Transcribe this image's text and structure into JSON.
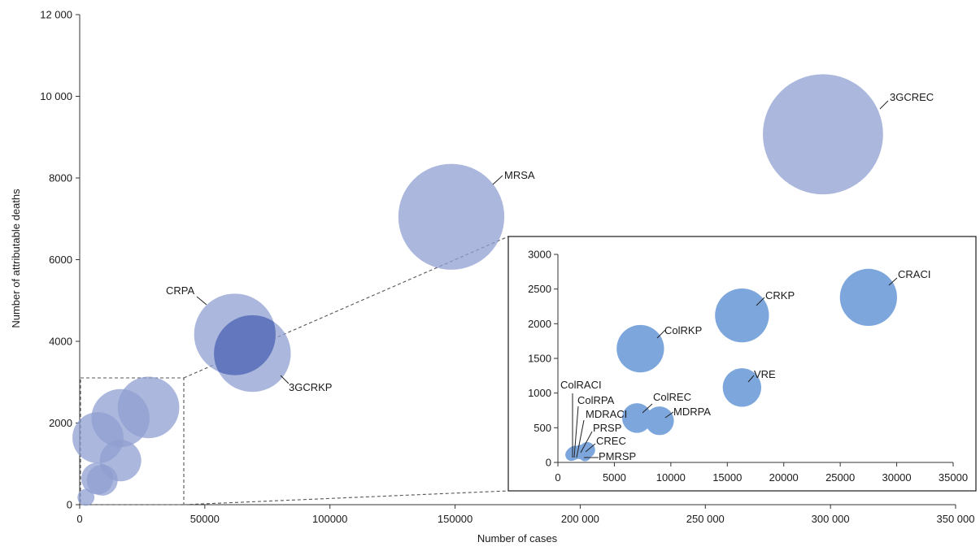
{
  "chart_data": [
    {
      "type": "scatter",
      "subtype": "bubble",
      "xlabel": "Number of cases",
      "ylabel": "Number of attributable deaths",
      "xlim": [
        0,
        350000
      ],
      "ylim": [
        0,
        12000
      ],
      "x_ticks": [
        0,
        50000,
        100000,
        150000,
        200000,
        250000,
        300000,
        350000
      ],
      "x_tick_labels": [
        "0",
        "50000",
        "100000",
        "150000",
        "200 000",
        "250 000",
        "300 000",
        "350 000"
      ],
      "y_ticks": [
        0,
        2000,
        4000,
        6000,
        8000,
        10000,
        12000
      ],
      "y_tick_labels": [
        "0",
        "2000",
        "4000",
        "6000",
        "8000",
        "10 000",
        "12 000"
      ],
      "grid": false,
      "bubble_color": "#8f9fd0",
      "overlap_color": "#6277bd",
      "points": [
        {
          "label": "3GCREC",
          "x": 297000,
          "y": 9070
        },
        {
          "label": "MRSA",
          "x": 148500,
          "y": 7050
        },
        {
          "label": "CRPA",
          "x": 62000,
          "y": 4170
        },
        {
          "label": "3GCRKP",
          "x": 69000,
          "y": 3700
        },
        {
          "label": "",
          "x": 27500,
          "y": 2380
        },
        {
          "label": "",
          "x": 16300,
          "y": 2120
        },
        {
          "label": "",
          "x": 7300,
          "y": 1640
        },
        {
          "label": "",
          "x": 16300,
          "y": 1080
        },
        {
          "label": "",
          "x": 7000,
          "y": 640
        },
        {
          "label": "",
          "x": 9000,
          "y": 600
        },
        {
          "label": "",
          "x": 2500,
          "y": 180
        }
      ]
    },
    {
      "type": "scatter",
      "subtype": "bubble",
      "inset": true,
      "xlim": [
        0,
        35000
      ],
      "ylim": [
        0,
        3000
      ],
      "x_ticks": [
        0,
        5000,
        10000,
        15000,
        20000,
        25000,
        30000,
        35000
      ],
      "x_tick_labels": [
        "0",
        "5000",
        "10000",
        "15000",
        "20000",
        "25000",
        "30000",
        "35000"
      ],
      "y_ticks": [
        0,
        500,
        1000,
        1500,
        2000,
        2500,
        3000
      ],
      "y_tick_labels": [
        "0",
        "500",
        "1000",
        "1500",
        "2000",
        "2500",
        "3000"
      ],
      "grid": false,
      "bubble_color": "#7da7dc",
      "points": [
        {
          "label": "CRACI",
          "x": 27500,
          "y": 2380
        },
        {
          "label": "CRKP",
          "x": 16300,
          "y": 2120
        },
        {
          "label": "ColRKP",
          "x": 7300,
          "y": 1640
        },
        {
          "label": "VRE",
          "x": 16300,
          "y": 1080
        },
        {
          "label": "ColREC",
          "x": 7000,
          "y": 640
        },
        {
          "label": "MDRPA",
          "x": 9000,
          "y": 600
        },
        {
          "label": "ColRACI",
          "x": 1200,
          "y": 110
        },
        {
          "label": "ColRPA",
          "x": 1350,
          "y": 130
        },
        {
          "label": "MDRACI",
          "x": 1500,
          "y": 140
        },
        {
          "label": "PRSP",
          "x": 2000,
          "y": 150
        },
        {
          "label": "CREC",
          "x": 2600,
          "y": 180
        },
        {
          "label": "PMRSP",
          "x": 2400,
          "y": 100
        }
      ]
    }
  ]
}
